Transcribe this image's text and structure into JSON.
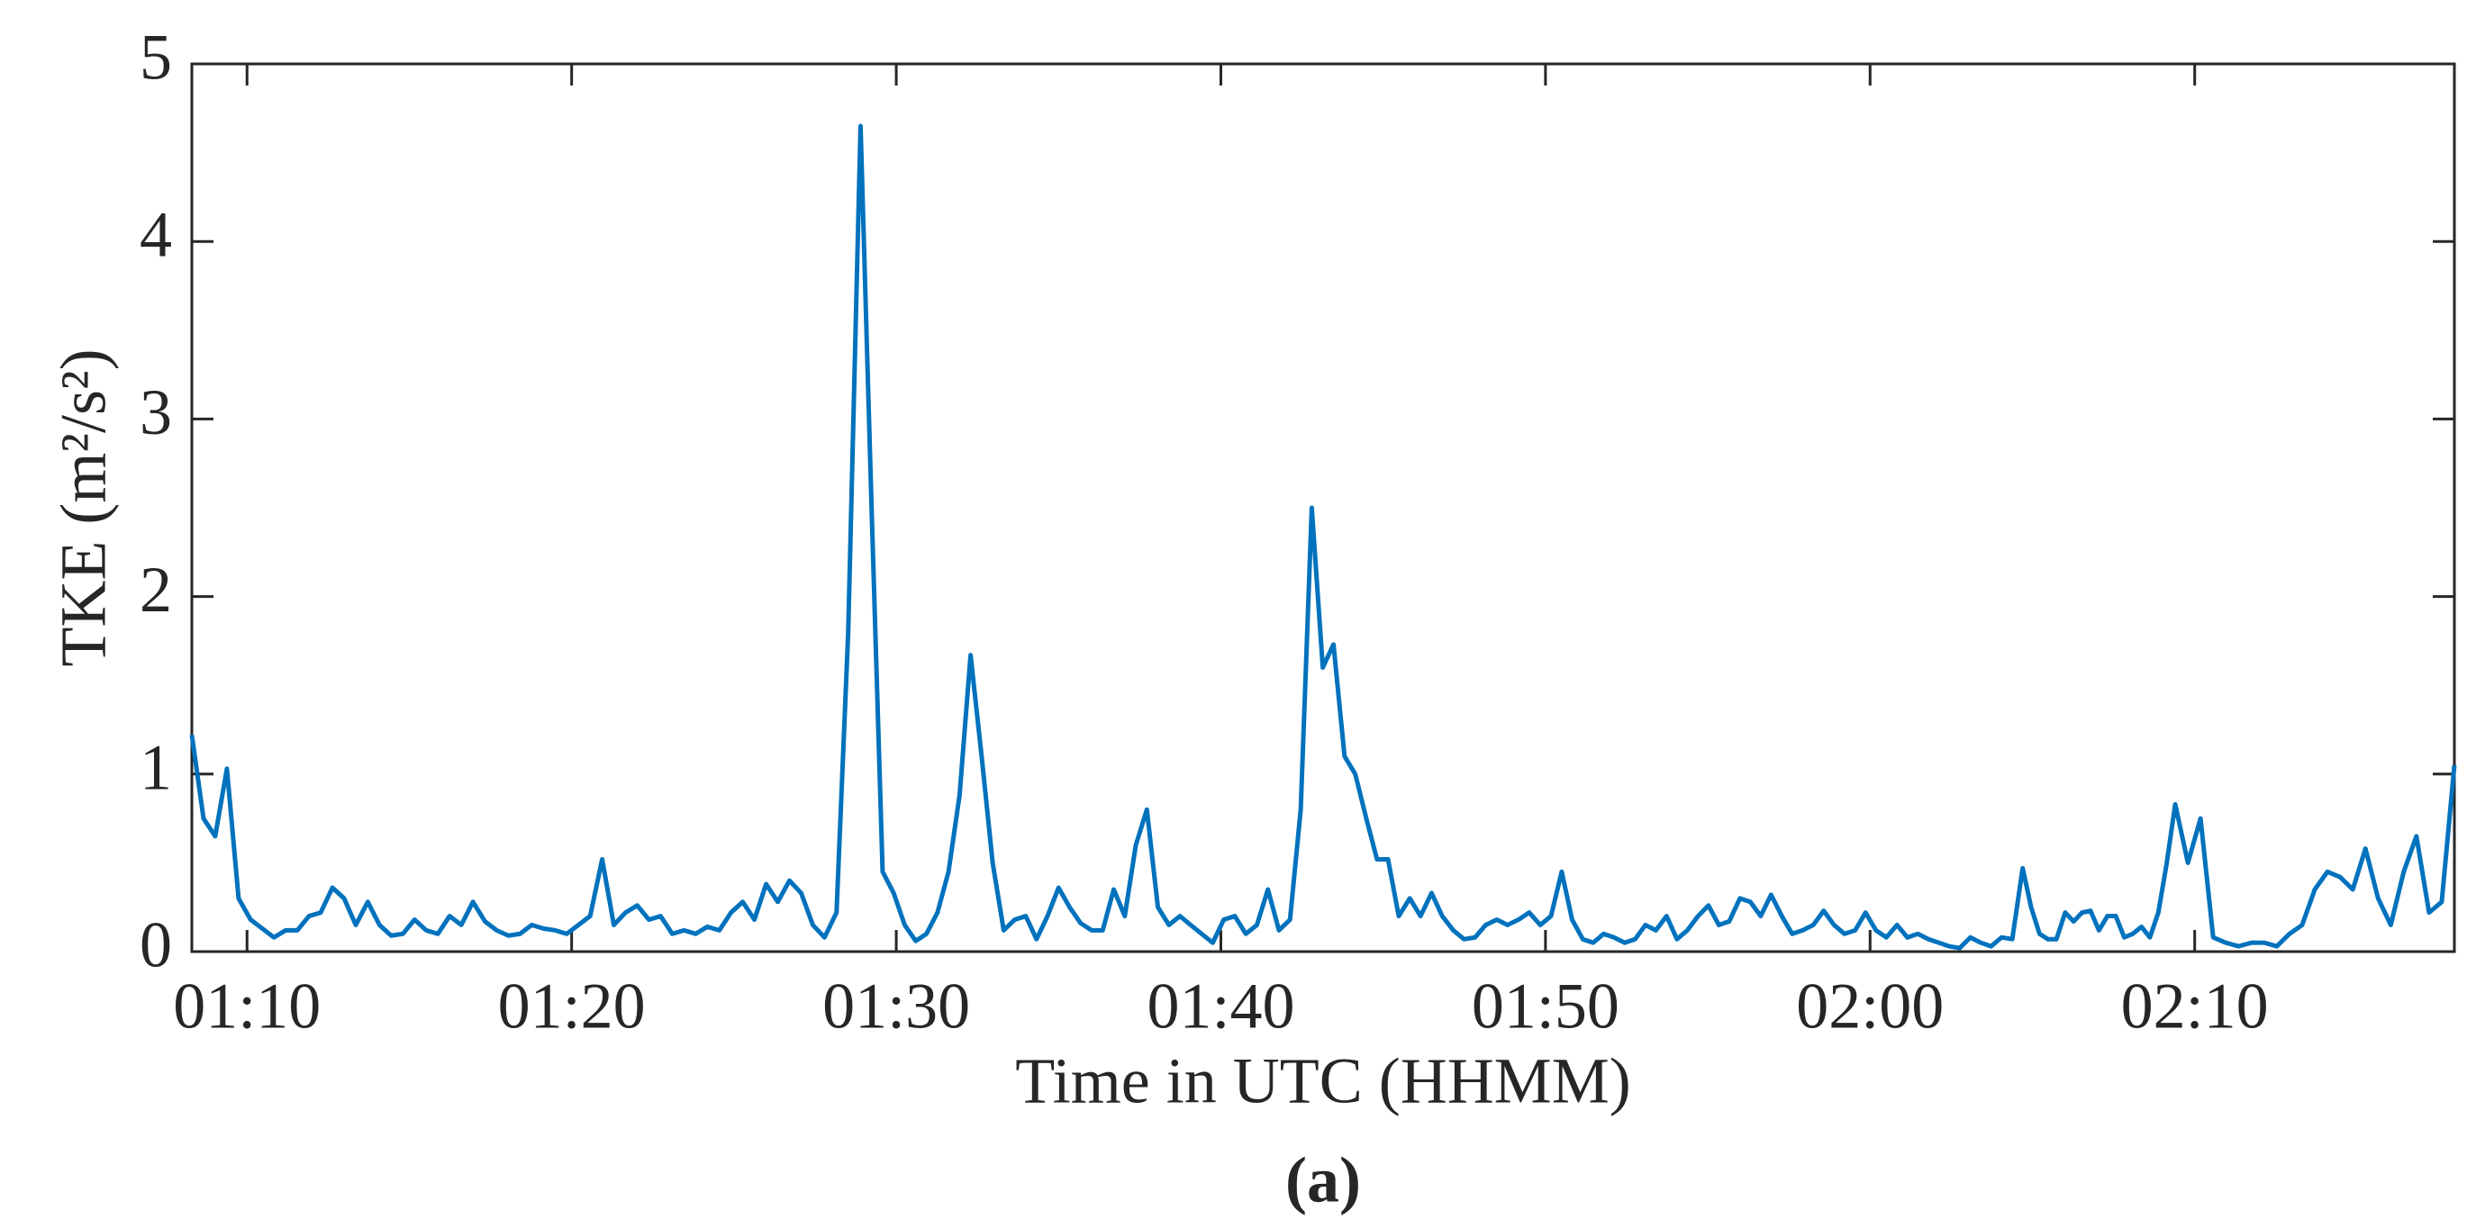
{
  "chart_data": {
    "type": "line",
    "y_label": "TKE (m²/s²)",
    "x_label": "Time in UTC (HHMM)",
    "caption": "(a)",
    "color": "#0072bd",
    "xlim": [
      68.3,
      138.0
    ],
    "xticks": [
      {
        "value": 70,
        "label": "01:10"
      },
      {
        "value": 80,
        "label": "01:20"
      },
      {
        "value": 90,
        "label": "01:30"
      },
      {
        "value": 100,
        "label": "01:40"
      },
      {
        "value": 110,
        "label": "01:50"
      },
      {
        "value": 120,
        "label": "02:00"
      },
      {
        "value": 130,
        "label": "02:10"
      }
    ],
    "ylim": [
      0,
      5
    ],
    "yticks": [
      0,
      1,
      2,
      3,
      4,
      5
    ],
    "x": [
      68.3,
      68.66,
      69.02,
      69.38,
      69.74,
      70.11,
      70.47,
      70.83,
      71.19,
      71.55,
      71.91,
      72.27,
      72.63,
      72.99,
      73.35,
      73.72,
      74.08,
      74.44,
      74.8,
      75.16,
      75.52,
      75.88,
      76.24,
      76.6,
      76.96,
      77.33,
      77.69,
      78.05,
      78.41,
      78.77,
      79.13,
      79.49,
      79.85,
      80.21,
      80.57,
      80.94,
      81.3,
      81.66,
      82.02,
      82.38,
      82.74,
      83.1,
      83.46,
      83.82,
      84.18,
      84.55,
      84.91,
      85.27,
      85.63,
      85.99,
      86.35,
      86.71,
      87.07,
      87.43,
      87.79,
      88.16,
      88.52,
      88.9,
      89.24,
      89.58,
      89.92,
      90.26,
      90.6,
      90.93,
      91.27,
      91.61,
      91.95,
      92.29,
      92.63,
      92.97,
      93.31,
      93.65,
      93.99,
      94.32,
      94.66,
      95.0,
      95.34,
      95.68,
      96.02,
      96.36,
      96.7,
      97.04,
      97.38,
      97.72,
      98.06,
      98.4,
      98.74,
      99.07,
      99.41,
      99.75,
      100.09,
      100.43,
      100.77,
      101.11,
      101.45,
      101.79,
      102.13,
      102.46,
      102.8,
      103.14,
      103.47,
      103.81,
      104.14,
      104.48,
      104.81,
      105.15,
      105.48,
      105.82,
      106.15,
      106.49,
      106.82,
      107.16,
      107.49,
      107.83,
      108.16,
      108.5,
      108.83,
      109.17,
      109.5,
      109.84,
      110.17,
      110.5,
      110.82,
      111.15,
      111.47,
      111.79,
      112.11,
      112.44,
      112.76,
      113.08,
      113.4,
      113.73,
      114.05,
      114.37,
      114.7,
      115.02,
      115.34,
      115.66,
      115.99,
      116.31,
      116.63,
      116.95,
      117.28,
      117.6,
      117.92,
      118.25,
      118.57,
      118.89,
      119.21,
      119.54,
      119.86,
      120.18,
      120.5,
      120.83,
      121.15,
      121.47,
      121.8,
      122.12,
      122.44,
      122.76,
      123.09,
      123.41,
      123.73,
      124.05,
      124.38,
      124.7,
      124.96,
      125.22,
      125.48,
      125.74,
      126.01,
      126.27,
      126.53,
      126.79,
      127.05,
      127.31,
      127.57,
      127.83,
      128.09,
      128.36,
      128.62,
      128.88,
      129.14,
      129.4,
      129.79,
      130.18,
      130.57,
      130.96,
      131.35,
      131.75,
      132.14,
      132.53,
      132.92,
      133.31,
      133.7,
      134.09,
      134.48,
      134.87,
      135.26,
      135.65,
      136.04,
      136.44,
      136.83,
      137.22,
      137.61,
      138.0
    ],
    "values": [
      1.22,
      0.75,
      0.65,
      1.03,
      0.3,
      0.18,
      0.13,
      0.08,
      0.12,
      0.12,
      0.2,
      0.22,
      0.36,
      0.3,
      0.15,
      0.28,
      0.15,
      0.09,
      0.1,
      0.18,
      0.12,
      0.1,
      0.2,
      0.15,
      0.28,
      0.17,
      0.12,
      0.09,
      0.1,
      0.15,
      0.13,
      0.12,
      0.1,
      0.15,
      0.2,
      0.52,
      0.15,
      0.22,
      0.26,
      0.18,
      0.2,
      0.1,
      0.12,
      0.1,
      0.14,
      0.12,
      0.22,
      0.28,
      0.18,
      0.38,
      0.28,
      0.4,
      0.33,
      0.15,
      0.08,
      0.22,
      1.8,
      4.65,
      2.5,
      0.45,
      0.33,
      0.15,
      0.06,
      0.1,
      0.22,
      0.45,
      0.88,
      1.67,
      1.1,
      0.5,
      0.12,
      0.18,
      0.2,
      0.07,
      0.2,
      0.36,
      0.25,
      0.16,
      0.12,
      0.12,
      0.35,
      0.2,
      0.6,
      0.8,
      0.25,
      0.15,
      0.2,
      0.15,
      0.1,
      0.05,
      0.18,
      0.2,
      0.1,
      0.15,
      0.35,
      0.12,
      0.18,
      0.8,
      2.5,
      1.6,
      1.73,
      1.1,
      1.0,
      0.75,
      0.52,
      0.52,
      0.2,
      0.3,
      0.2,
      0.33,
      0.2,
      0.12,
      0.07,
      0.08,
      0.15,
      0.18,
      0.15,
      0.18,
      0.22,
      0.15,
      0.2,
      0.45,
      0.18,
      0.07,
      0.05,
      0.1,
      0.08,
      0.05,
      0.07,
      0.15,
      0.12,
      0.2,
      0.07,
      0.12,
      0.2,
      0.26,
      0.15,
      0.17,
      0.3,
      0.28,
      0.2,
      0.32,
      0.2,
      0.1,
      0.12,
      0.15,
      0.23,
      0.15,
      0.1,
      0.12,
      0.22,
      0.12,
      0.08,
      0.15,
      0.08,
      0.1,
      0.07,
      0.05,
      0.03,
      0.02,
      0.08,
      0.05,
      0.03,
      0.08,
      0.07,
      0.47,
      0.25,
      0.1,
      0.07,
      0.07,
      0.22,
      0.17,
      0.22,
      0.23,
      0.12,
      0.2,
      0.2,
      0.08,
      0.1,
      0.14,
      0.08,
      0.22,
      0.5,
      0.83,
      0.5,
      0.75,
      0.08,
      0.05,
      0.03,
      0.05,
      0.05,
      0.03,
      0.1,
      0.15,
      0.35,
      0.45,
      0.42,
      0.35,
      0.58,
      0.3,
      0.15,
      0.45,
      0.65,
      0.22,
      0.28,
      1.05
    ]
  }
}
